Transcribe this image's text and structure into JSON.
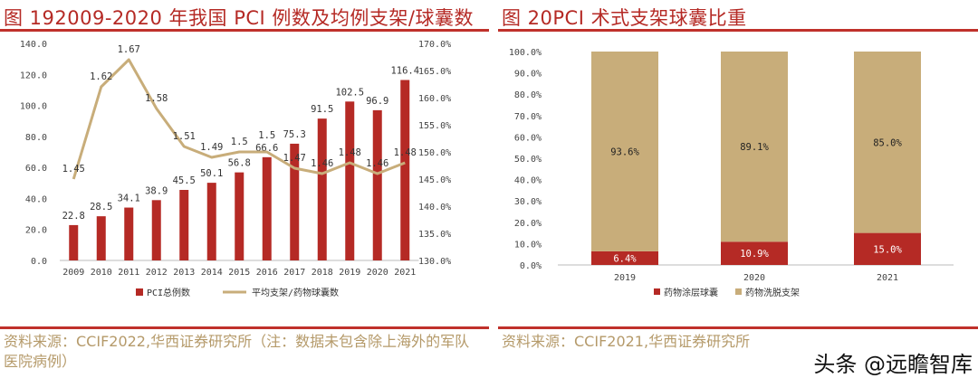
{
  "watermark": "头条 @远瞻智库",
  "left": {
    "title": "图 192009-2020 年我国 PCI 例数及均例支架/球囊数",
    "source": "资料来源：CCIF2022,华西证券研究所（注：数据未包含除上海外的军队医院病例）"
  },
  "right": {
    "title": "图 20PCI 术式支架球囊比重",
    "source": "资料来源：CCIF2021,华西证券研究所"
  },
  "chart_data": [
    {
      "type": "bar+line",
      "categories": [
        "2009",
        "2010",
        "2011",
        "2012",
        "2013",
        "2014",
        "2015",
        "2016",
        "2017",
        "2018",
        "2019",
        "2020",
        "2021"
      ],
      "series": [
        {
          "name": "PCI总例数",
          "type": "bar",
          "axis": "left",
          "color": "#b52a25",
          "values": [
            22.8,
            28.5,
            34.1,
            38.9,
            45.5,
            50.1,
            56.8,
            66.6,
            75.3,
            91.5,
            102.5,
            96.9,
            116.4
          ]
        },
        {
          "name": "平均支架/药物球囊数",
          "type": "line",
          "axis": "right",
          "color": "#c8ad7a",
          "values": [
            1.45,
            1.62,
            1.67,
            1.58,
            1.51,
            1.49,
            1.5,
            1.5,
            1.47,
            1.46,
            1.48,
            1.46,
            1.48
          ]
        }
      ],
      "ylim_left": [
        0,
        140
      ],
      "yticks_left": [
        "0.0",
        "20.0",
        "40.0",
        "60.0",
        "80.0",
        "100.0",
        "120.0",
        "140.0"
      ],
      "ylim_right": [
        130,
        170
      ],
      "yticks_right": [
        "130.0%",
        "135.0%",
        "140.0%",
        "145.0%",
        "150.0%",
        "155.0%",
        "160.0%",
        "165.0%",
        "170.0%"
      ],
      "legend": "bottom",
      "grid": false
    },
    {
      "type": "stacked-bar",
      "categories": [
        "2019",
        "2020",
        "2021"
      ],
      "series": [
        {
          "name": "药物涂层球囊",
          "color": "#b52a25",
          "values": [
            6.4,
            10.9,
            15.0
          ],
          "labels": [
            "6.4%",
            "10.9%",
            "15.0%"
          ]
        },
        {
          "name": "药物洗脱支架",
          "color": "#c8ad7a",
          "values": [
            93.6,
            89.1,
            85.0
          ],
          "labels": [
            "93.6%",
            "89.1%",
            "85.0%"
          ]
        }
      ],
      "ylim": [
        0,
        100
      ],
      "yticks": [
        "0.0%",
        "10.0%",
        "20.0%",
        "30.0%",
        "40.0%",
        "50.0%",
        "60.0%",
        "70.0%",
        "80.0%",
        "90.0%",
        "100.0%"
      ],
      "legend": "bottom",
      "grid": false
    }
  ]
}
